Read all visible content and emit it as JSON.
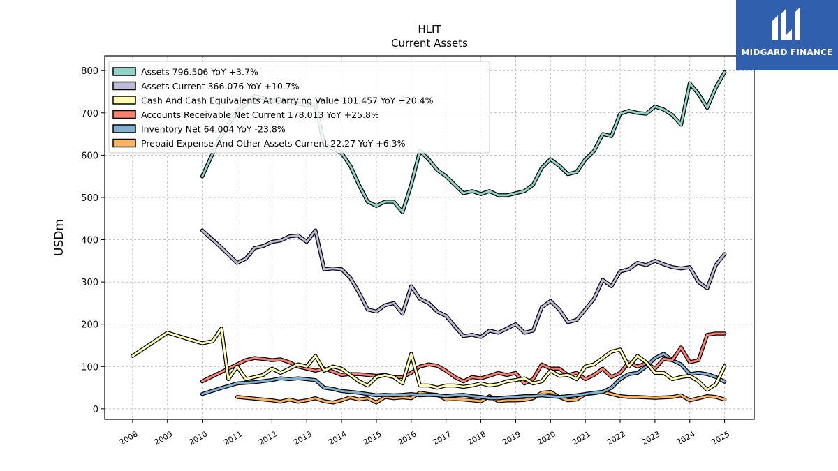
{
  "brand": {
    "name": "MIDGARD FINANCE",
    "bg_color": "#2f5fad"
  },
  "chart_data": {
    "type": "line",
    "title": "HLIT",
    "subtitle": "Current  Assets",
    "ylabel": "USDm",
    "xlabel": "",
    "xlim": [
      2007.2,
      2025.85
    ],
    "ylim": [
      -25,
      835
    ],
    "xticks": [
      2008,
      2009,
      2010,
      2011,
      2012,
      2013,
      2014,
      2015,
      2016,
      2017,
      2018,
      2019,
      2020,
      2021,
      2022,
      2023,
      2024,
      2025
    ],
    "xtick_labels": [
      "2008",
      "2009",
      "2010",
      "2011",
      "2012",
      "2013",
      "2014",
      "2015",
      "2016",
      "2017",
      "2018",
      "2019",
      "2020",
      "2021",
      "2022",
      "2023",
      "2024",
      "2025"
    ],
    "yticks": [
      0,
      100,
      200,
      300,
      400,
      500,
      600,
      700,
      800
    ],
    "ytick_labels": [
      "0",
      "100",
      "200",
      "300",
      "400",
      "500",
      "600",
      "700",
      "800"
    ],
    "grid": true,
    "legend_position": "top-left",
    "series": [
      {
        "name": "Prepaid Expense And Other Assets Current",
        "legend": "Prepaid Expense And Other Assets Current  22.27 YoY +6.3%",
        "color": "#fdb462",
        "x": [
          2011.0,
          2011.5,
          2012.0,
          2012.25,
          2012.5,
          2012.75,
          2013.0,
          2013.25,
          2013.5,
          2013.75,
          2014.0,
          2014.25,
          2014.5,
          2014.75,
          2015.0,
          2015.25,
          2015.5,
          2015.75,
          2016.0,
          2016.25,
          2016.5,
          2016.75,
          2017.0,
          2017.25,
          2017.5,
          2017.75,
          2018.0,
          2018.25,
          2018.5,
          2018.75,
          2019.0,
          2019.25,
          2019.5,
          2019.75,
          2020.0,
          2020.25,
          2020.5,
          2020.75,
          2021.0,
          2021.25,
          2021.5,
          2021.75,
          2022.0,
          2022.25,
          2022.5,
          2022.75,
          2023.0,
          2023.25,
          2023.5,
          2023.75,
          2024.0,
          2024.25,
          2024.5,
          2024.75,
          2025.0
        ],
        "values": [
          28,
          24,
          20,
          17,
          22,
          17,
          20,
          25,
          18,
          15,
          20,
          27,
          22,
          25,
          15,
          28,
          25,
          27,
          25,
          38,
          35,
          33,
          22,
          23,
          22,
          20,
          18,
          30,
          18,
          20,
          20,
          21,
          25,
          38,
          40,
          28,
          20,
          22,
          35,
          37,
          40,
          35,
          30,
          28,
          28,
          27,
          26,
          27,
          28,
          32,
          20,
          25,
          30,
          28,
          22
        ]
      },
      {
        "name": "Inventory Net",
        "legend": "Inventory Net  64.004 YoY -23.8%",
        "color": "#80b1d3",
        "x": [
          2010.0,
          2010.5,
          2011.0,
          2011.5,
          2012.0,
          2012.25,
          2012.5,
          2012.75,
          2013.0,
          2013.25,
          2013.5,
          2013.75,
          2014.0,
          2014.25,
          2014.5,
          2014.75,
          2015.0,
          2015.25,
          2015.5,
          2015.75,
          2016.0,
          2016.25,
          2016.5,
          2016.75,
          2017.0,
          2017.25,
          2017.5,
          2017.75,
          2018.0,
          2018.25,
          2018.5,
          2018.75,
          2019.0,
          2019.25,
          2019.5,
          2019.75,
          2020.0,
          2020.25,
          2020.5,
          2020.75,
          2021.0,
          2021.25,
          2021.5,
          2021.75,
          2022.0,
          2022.25,
          2022.5,
          2022.75,
          2023.0,
          2023.25,
          2023.5,
          2023.75,
          2024.0,
          2024.25,
          2024.5,
          2024.75,
          2025.0
        ],
        "values": [
          35,
          48,
          60,
          63,
          68,
          72,
          70,
          72,
          70,
          68,
          50,
          47,
          42,
          40,
          38,
          35,
          32,
          33,
          32,
          33,
          35,
          32,
          33,
          32,
          30,
          32,
          33,
          30,
          28,
          25,
          25,
          27,
          28,
          30,
          30,
          32,
          30,
          28,
          30,
          32,
          35,
          38,
          40,
          50,
          70,
          82,
          85,
          100,
          120,
          130,
          115,
          105,
          82,
          85,
          82,
          75,
          64
        ]
      },
      {
        "name": "Accounts Receivable Net Current",
        "legend": "Accounts Receivable Net Current  178.013 YoY +25.8%",
        "color": "#fb8072",
        "x": [
          2010.0,
          2010.5,
          2011.0,
          2011.25,
          2011.5,
          2011.75,
          2012.0,
          2012.25,
          2012.5,
          2012.75,
          2013.0,
          2013.25,
          2013.5,
          2013.75,
          2014.0,
          2014.25,
          2014.5,
          2014.75,
          2015.0,
          2015.25,
          2015.5,
          2015.75,
          2016.0,
          2016.25,
          2016.5,
          2016.75,
          2017.0,
          2017.25,
          2017.5,
          2017.75,
          2018.0,
          2018.25,
          2018.5,
          2018.75,
          2019.0,
          2019.25,
          2019.5,
          2019.75,
          2020.0,
          2020.25,
          2020.5,
          2020.75,
          2021.0,
          2021.25,
          2021.5,
          2021.75,
          2022.0,
          2022.25,
          2022.5,
          2022.75,
          2023.0,
          2023.25,
          2023.5,
          2023.75,
          2024.0,
          2024.25,
          2024.5,
          2024.75,
          2025.0
        ],
        "values": [
          65,
          85,
          105,
          115,
          120,
          118,
          115,
          117,
          110,
          100,
          95,
          90,
          95,
          88,
          80,
          82,
          82,
          80,
          78,
          80,
          75,
          75,
          85,
          100,
          105,
          102,
          90,
          75,
          65,
          75,
          72,
          78,
          85,
          80,
          85,
          60,
          70,
          105,
          95,
          95,
          80,
          85,
          70,
          80,
          95,
          75,
          85,
          110,
          100,
          108,
          95,
          118,
          115,
          145,
          110,
          115,
          175,
          178,
          178
        ]
      },
      {
        "name": "Cash And Cash Equivalents At Carrying Value",
        "legend": "Cash And Cash Equivalents At Carrying Value  101.457 YoY +20.4%",
        "color": "#ffffb3",
        "x": [
          2008.0,
          2009.0,
          2010.0,
          2010.3,
          2010.55,
          2010.75,
          2011.0,
          2011.25,
          2011.5,
          2011.75,
          2012.0,
          2012.25,
          2012.5,
          2012.75,
          2013.0,
          2013.25,
          2013.5,
          2013.75,
          2014.0,
          2014.25,
          2014.5,
          2014.75,
          2015.0,
          2015.25,
          2015.5,
          2015.75,
          2016.0,
          2016.25,
          2016.5,
          2016.75,
          2017.0,
          2017.25,
          2017.5,
          2017.75,
          2018.0,
          2018.25,
          2018.5,
          2018.75,
          2019.0,
          2019.25,
          2019.5,
          2019.75,
          2020.0,
          2020.25,
          2020.5,
          2020.75,
          2021.0,
          2021.25,
          2021.5,
          2021.75,
          2022.0,
          2022.25,
          2022.5,
          2022.75,
          2023.0,
          2023.25,
          2023.5,
          2023.75,
          2024.0,
          2024.25,
          2024.5,
          2024.75,
          2025.0
        ],
        "values": [
          125,
          180,
          155,
          160,
          190,
          70,
          100,
          70,
          75,
          80,
          95,
          85,
          95,
          105,
          100,
          125,
          90,
          100,
          95,
          80,
          65,
          55,
          75,
          80,
          75,
          60,
          130,
          55,
          55,
          50,
          55,
          55,
          52,
          55,
          60,
          55,
          58,
          65,
          68,
          72,
          60,
          65,
          90,
          78,
          80,
          70,
          100,
          105,
          120,
          135,
          140,
          100,
          125,
          110,
          85,
          85,
          70,
          75,
          78,
          65,
          45,
          58,
          101
        ]
      },
      {
        "name": "Assets Current",
        "legend": "Assets Current  366.076 YoY +10.7%",
        "color": "#bebada",
        "x": [
          2010.0,
          2010.5,
          2011.0,
          2011.25,
          2011.5,
          2011.75,
          2012.0,
          2012.25,
          2012.5,
          2012.75,
          2013.0,
          2013.25,
          2013.5,
          2013.75,
          2014.0,
          2014.25,
          2014.5,
          2014.75,
          2015.0,
          2015.25,
          2015.5,
          2015.75,
          2016.0,
          2016.25,
          2016.5,
          2016.75,
          2017.0,
          2017.25,
          2017.5,
          2017.75,
          2018.0,
          2018.25,
          2018.5,
          2018.75,
          2019.0,
          2019.25,
          2019.5,
          2019.75,
          2020.0,
          2020.25,
          2020.5,
          2020.75,
          2021.0,
          2021.25,
          2021.5,
          2021.75,
          2022.0,
          2022.25,
          2022.5,
          2022.75,
          2023.0,
          2023.25,
          2023.5,
          2023.75,
          2024.0,
          2024.25,
          2024.5,
          2024.75,
          2025.0
        ],
        "values": [
          422,
          385,
          345,
          355,
          380,
          385,
          395,
          398,
          408,
          410,
          395,
          422,
          330,
          332,
          330,
          310,
          275,
          235,
          230,
          245,
          250,
          225,
          290,
          260,
          250,
          230,
          220,
          195,
          172,
          175,
          170,
          185,
          180,
          190,
          200,
          180,
          185,
          240,
          255,
          235,
          205,
          210,
          235,
          260,
          305,
          290,
          325,
          330,
          345,
          340,
          350,
          342,
          335,
          332,
          335,
          300,
          285,
          340,
          366
        ]
      },
      {
        "name": "Assets",
        "legend": "Assets  796.506 YoY +3.7%",
        "color": "#8dd3c7",
        "x": [
          2010.0,
          2010.5,
          2011.0,
          2011.25,
          2011.5,
          2011.75,
          2012.0,
          2012.25,
          2012.5,
          2012.75,
          2013.0,
          2013.25,
          2013.5,
          2013.75,
          2014.0,
          2014.25,
          2014.5,
          2014.75,
          2015.0,
          2015.25,
          2015.5,
          2015.75,
          2016.0,
          2016.25,
          2016.5,
          2016.75,
          2017.0,
          2017.25,
          2017.5,
          2017.75,
          2018.0,
          2018.25,
          2018.5,
          2018.75,
          2019.0,
          2019.25,
          2019.5,
          2019.75,
          2020.0,
          2020.25,
          2020.5,
          2020.75,
          2021.0,
          2021.25,
          2021.5,
          2021.75,
          2022.0,
          2022.25,
          2022.5,
          2022.75,
          2023.0,
          2023.25,
          2023.5,
          2023.75,
          2024.0,
          2024.25,
          2024.5,
          2024.75,
          2025.0
        ],
        "values": [
          550,
          640,
          705,
          720,
          740,
          735,
          728,
          732,
          728,
          722,
          718,
          720,
          625,
          615,
          605,
          575,
          530,
          490,
          480,
          490,
          490,
          465,
          530,
          610,
          590,
          565,
          550,
          530,
          510,
          515,
          508,
          515,
          505,
          505,
          510,
          515,
          530,
          570,
          590,
          575,
          555,
          560,
          590,
          610,
          650,
          645,
          698,
          705,
          700,
          698,
          715,
          708,
          695,
          672,
          770,
          745,
          712,
          760,
          796
        ]
      }
    ]
  }
}
